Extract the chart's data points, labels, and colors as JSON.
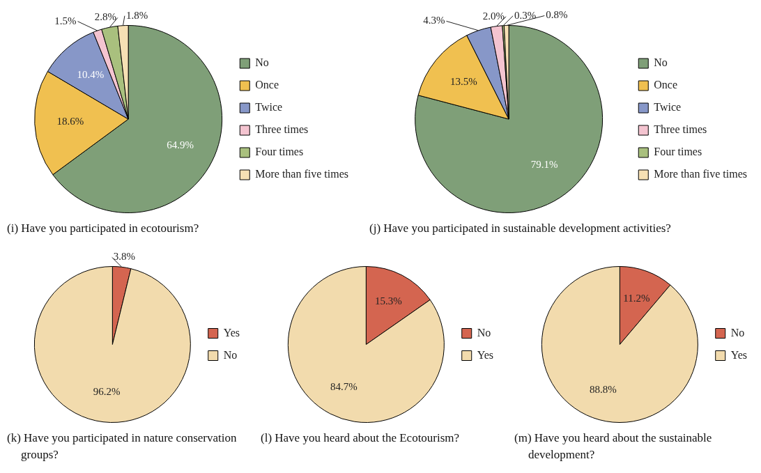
{
  "chart_data": [
    {
      "type": "pie",
      "title": "(i) Have you participated in ecotourism?",
      "categories": [
        "No",
        "Once",
        "Twice",
        "Three times",
        "Four times",
        "More than five times"
      ],
      "values": [
        64.9,
        18.6,
        10.4,
        1.5,
        2.8,
        1.8
      ],
      "value_labels": [
        "64.9%",
        "18.6%",
        "10.4%",
        "1.5%",
        "2.8%",
        "1.8%"
      ],
      "colors": [
        "#7f9f78",
        "#f0c050",
        "#8797c8",
        "#f4c4d0",
        "#a9c07e",
        "#f6e0b4"
      ],
      "legend": "right"
    },
    {
      "type": "pie",
      "title": "(j) Have you participated in sustainable development activities?",
      "categories": [
        "No",
        "Once",
        "Twice",
        "Three times",
        "Four times",
        "More than five times"
      ],
      "values": [
        79.1,
        13.5,
        4.3,
        2.0,
        0.3,
        0.8
      ],
      "value_labels": [
        "79.1%",
        "13.5%",
        "4.3%",
        "2.0%",
        "0.3%",
        "0.8%"
      ],
      "colors": [
        "#7f9f78",
        "#f0c050",
        "#8797c8",
        "#f4c4d0",
        "#a9c07e",
        "#f6e0b4"
      ],
      "legend": "right"
    },
    {
      "type": "pie",
      "title": "(k) Have you participated in nature conservation groups?",
      "categories": [
        "Yes",
        "No"
      ],
      "values": [
        3.8,
        96.2
      ],
      "value_labels": [
        "3.8%",
        "96.2%"
      ],
      "colors": [
        "#d46550",
        "#f2dbad"
      ],
      "legend": "right"
    },
    {
      "type": "pie",
      "title": "(l) Have you heard about the Ecotourism?",
      "categories": [
        "No",
        "Yes"
      ],
      "values": [
        15.3,
        84.7
      ],
      "value_labels": [
        "15.3%",
        "84.7%"
      ],
      "colors": [
        "#d46550",
        "#f2dbad"
      ],
      "legend": "right"
    },
    {
      "type": "pie",
      "title": "(m) Have you heard about the sustainable development?",
      "categories": [
        "No",
        "Yes"
      ],
      "values": [
        11.2,
        88.8
      ],
      "value_labels": [
        "11.2%",
        "88.8%"
      ],
      "colors": [
        "#d46550",
        "#f2dbad"
      ],
      "legend": "right"
    }
  ]
}
